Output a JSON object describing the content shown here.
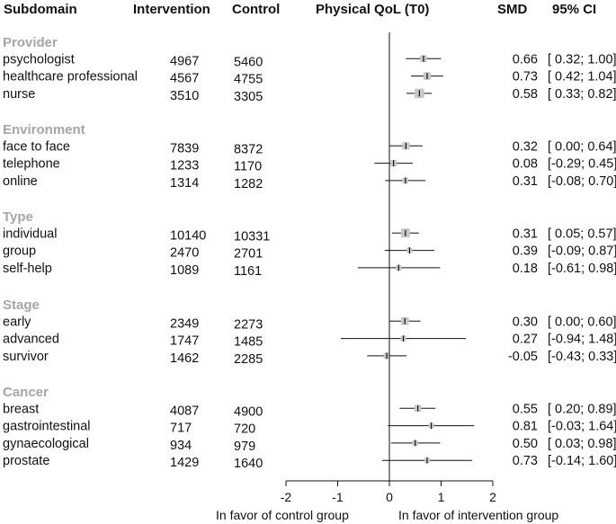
{
  "headers": {
    "subdomain": "Subdomain",
    "intervention": "Intervention",
    "control": "Control",
    "plot": "Physical QoL (T0)",
    "smd": "SMD",
    "ci": "95% CI"
  },
  "chart_data": {
    "type": "forest",
    "title": "Physical QoL (T0)",
    "xlim": [
      -2,
      2
    ],
    "xticks": [
      "-2",
      "-1",
      "0",
      "1",
      "2"
    ],
    "xlabel_left": "In favor of control group",
    "xlabel_right": "In favor of intervention group",
    "groups": [
      {
        "name": "Provider",
        "rows": [
          {
            "label": "psychologist",
            "intervention": "4967",
            "control": "5460",
            "smd": 0.66,
            "lo": 0.32,
            "hi": 1.0,
            "smd_text": "0.66",
            "ci_text": "[ 0.32; 1.00]"
          },
          {
            "label": "healthcare professional",
            "intervention": "4567",
            "control": "4755",
            "smd": 0.73,
            "lo": 0.42,
            "hi": 1.04,
            "smd_text": "0.73",
            "ci_text": "[ 0.42; 1.04]"
          },
          {
            "label": "nurse",
            "intervention": "3510",
            "control": "3305",
            "smd": 0.58,
            "lo": 0.33,
            "hi": 0.82,
            "smd_text": "0.58",
            "ci_text": "[ 0.33; 0.82]"
          }
        ]
      },
      {
        "name": "Environment",
        "rows": [
          {
            "label": "face to face",
            "intervention": "7839",
            "control": "8372",
            "smd": 0.32,
            "lo": 0.0,
            "hi": 0.64,
            "smd_text": "0.32",
            "ci_text": "[ 0.00; 0.64]"
          },
          {
            "label": "telephone",
            "intervention": "1233",
            "control": "1170",
            "smd": 0.08,
            "lo": -0.29,
            "hi": 0.45,
            "smd_text": "0.08",
            "ci_text": "[-0.29; 0.45]"
          },
          {
            "label": "online",
            "intervention": "1314",
            "control": "1282",
            "smd": 0.31,
            "lo": -0.08,
            "hi": 0.7,
            "smd_text": "0.31",
            "ci_text": "[-0.08; 0.70]"
          }
        ]
      },
      {
        "name": "Type",
        "rows": [
          {
            "label": "individual",
            "intervention": "10140",
            "control": "10331",
            "smd": 0.31,
            "lo": 0.05,
            "hi": 0.57,
            "smd_text": "0.31",
            "ci_text": "[ 0.05; 0.57]"
          },
          {
            "label": "group",
            "intervention": "2470",
            "control": "2701",
            "smd": 0.39,
            "lo": -0.09,
            "hi": 0.87,
            "smd_text": "0.39",
            "ci_text": "[-0.09; 0.87]"
          },
          {
            "label": "self-help",
            "intervention": "1089",
            "control": "1161",
            "smd": 0.18,
            "lo": -0.61,
            "hi": 0.98,
            "smd_text": "0.18",
            "ci_text": "[-0.61; 0.98]"
          }
        ]
      },
      {
        "name": "Stage",
        "rows": [
          {
            "label": "early",
            "intervention": "2349",
            "control": "2273",
            "smd": 0.3,
            "lo": 0.0,
            "hi": 0.6,
            "smd_text": "0.30",
            "ci_text": "[ 0.00; 0.60]"
          },
          {
            "label": "advanced",
            "intervention": "1747",
            "control": "1485",
            "smd": 0.27,
            "lo": -0.94,
            "hi": 1.48,
            "smd_text": "0.27",
            "ci_text": "[-0.94; 1.48]"
          },
          {
            "label": "survivor",
            "intervention": "1462",
            "control": "2285",
            "smd": -0.05,
            "lo": -0.43,
            "hi": 0.33,
            "smd_text": "-0.05",
            "ci_text": "[-0.43; 0.33]"
          }
        ]
      },
      {
        "name": "Cancer",
        "rows": [
          {
            "label": "breast",
            "intervention": "4087",
            "control": "4900",
            "smd": 0.55,
            "lo": 0.2,
            "hi": 0.89,
            "smd_text": "0.55",
            "ci_text": "[ 0.20; 0.89]"
          },
          {
            "label": "gastrointestinal",
            "intervention": "717",
            "control": "720",
            "smd": 0.81,
            "lo": -0.03,
            "hi": 1.64,
            "smd_text": "0.81",
            "ci_text": "[-0.03; 1.64]"
          },
          {
            "label": "gynaecological",
            "intervention": "934",
            "control": "979",
            "smd": 0.5,
            "lo": 0.03,
            "hi": 0.98,
            "smd_text": "0.50",
            "ci_text": "[ 0.03; 0.98]"
          },
          {
            "label": "prostate",
            "intervention": "1429",
            "control": "1640",
            "smd": 0.73,
            "lo": -0.14,
            "hi": 1.6,
            "smd_text": "0.73",
            "ci_text": "[-0.14; 1.60]"
          }
        ]
      }
    ]
  },
  "colors": {
    "group_header": "#a6a6a6",
    "box": "#c8c8c8",
    "line": "#111111"
  }
}
